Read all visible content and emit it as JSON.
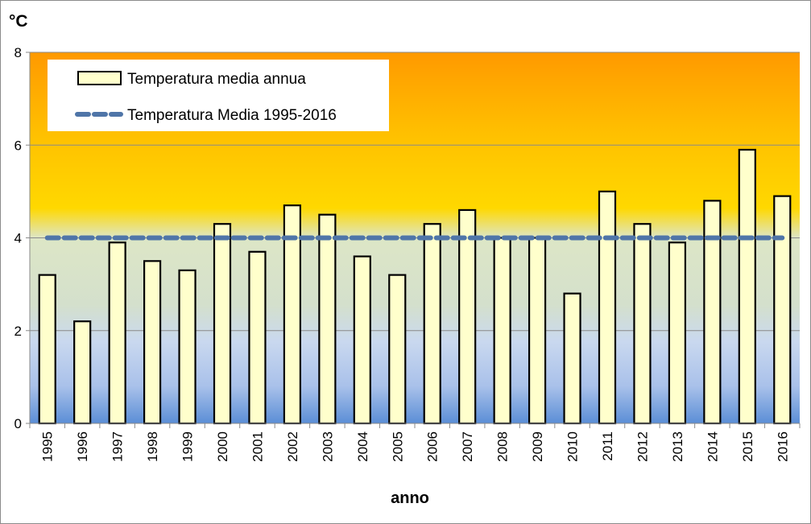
{
  "chart_data": {
    "type": "bar",
    "ylabel": "°C",
    "xlabel": "anno",
    "ylim": [
      0,
      8
    ],
    "yticks": [
      0,
      2,
      4,
      6,
      8
    ],
    "categories": [
      "1995",
      "1996",
      "1997",
      "1998",
      "1999",
      "2000",
      "2001",
      "2002",
      "2003",
      "2004",
      "2005",
      "2006",
      "2007",
      "2008",
      "2009",
      "2010",
      "2011",
      "2012",
      "2013",
      "2014",
      "2015",
      "2016"
    ],
    "series": [
      {
        "name": "Temperatura media annua",
        "type": "bar",
        "color": "#ffffcc",
        "values": [
          3.2,
          2.2,
          3.9,
          3.5,
          3.3,
          4.3,
          3.7,
          4.7,
          4.5,
          3.6,
          3.2,
          4.3,
          4.6,
          4.0,
          4.0,
          2.8,
          5.0,
          4.3,
          3.9,
          4.8,
          5.9,
          4.9
        ]
      },
      {
        "name": "Temperatura Media 1995-2016",
        "type": "line",
        "style": "dashed",
        "color": "#4f75a8",
        "values": [
          4.0,
          4.0,
          4.0,
          4.0,
          4.0,
          4.0,
          4.0,
          4.0,
          4.0,
          4.0,
          4.0,
          4.0,
          4.0,
          4.0,
          4.0,
          4.0,
          4.0,
          4.0,
          4.0,
          4.0,
          4.0,
          4.0
        ]
      }
    ],
    "legend_position": "top-left",
    "grid": true,
    "background": "gradient orange (top) to yellow to green to blue (bottom)"
  }
}
